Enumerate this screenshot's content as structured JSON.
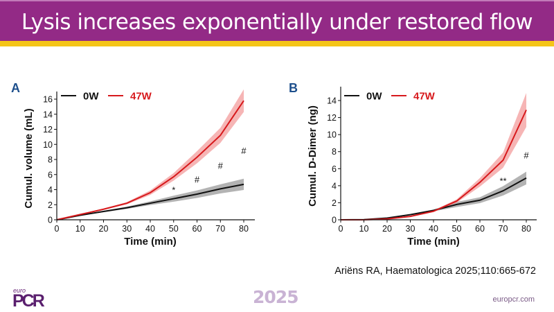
{
  "slide": {
    "title": "Lysis increases exponentially under restored flow",
    "citation": "Ariëns RA, Haematologica 2025;110:665-672",
    "footer": {
      "logo_small": "euro",
      "logo_big": "PCR",
      "year": "2025",
      "website": "europcr.com"
    },
    "colors": {
      "header": "#932a86",
      "accent_bar": "#f5c518",
      "series_0W": "#111111",
      "series_47W": "#d7191c",
      "band_0W": "#9a9a9a",
      "band_47W": "#f4a3a3"
    }
  },
  "chart_data": [
    {
      "panel": "A",
      "type": "line",
      "title": "",
      "xlabel": "Time (min)",
      "ylabel": "Cumul. volume (mL)",
      "x": [
        0,
        10,
        20,
        30,
        40,
        50,
        60,
        70,
        80
      ],
      "xlim": [
        0,
        85
      ],
      "ylim": [
        0,
        17
      ],
      "xticks": [
        0,
        10,
        20,
        30,
        40,
        50,
        60,
        70,
        80
      ],
      "yticks": [
        0,
        2,
        4,
        6,
        8,
        10,
        12,
        14,
        16
      ],
      "legend": {
        "position": "top-left",
        "entries": [
          "0W",
          "47W"
        ]
      },
      "grid": false,
      "series": [
        {
          "name": "0W",
          "values": [
            0,
            0.6,
            1.1,
            1.6,
            2.2,
            2.8,
            3.4,
            4.1,
            4.7
          ],
          "error": [
            0,
            0.05,
            0.1,
            0.15,
            0.25,
            0.4,
            0.5,
            0.6,
            0.75
          ]
        },
        {
          "name": "47W",
          "values": [
            0,
            0.7,
            1.4,
            2.2,
            3.6,
            5.7,
            8.3,
            11.2,
            15.8
          ],
          "error": [
            0,
            0.05,
            0.1,
            0.15,
            0.3,
            0.5,
            0.8,
            1.0,
            1.5
          ]
        }
      ],
      "annotations": [
        {
          "x": 50,
          "y": 4.0,
          "text": "*"
        },
        {
          "x": 60,
          "y": 5.4,
          "text": "#"
        },
        {
          "x": 70,
          "y": 7.2,
          "text": "#"
        },
        {
          "x": 80,
          "y": 9.2,
          "text": "#"
        }
      ]
    },
    {
      "panel": "B",
      "type": "line",
      "title": "",
      "xlabel": "Time (min)",
      "ylabel": "Cumul. D-Dimer  (ng)",
      "x": [
        0,
        10,
        20,
        30,
        40,
        50,
        60,
        70,
        80
      ],
      "xlim": [
        0,
        85
      ],
      "ylim": [
        0,
        15
      ],
      "xticks": [
        0,
        10,
        20,
        30,
        40,
        50,
        60,
        70,
        80
      ],
      "yticks": [
        0,
        2,
        4,
        6,
        8,
        10,
        12,
        14
      ],
      "legend": {
        "position": "top-left",
        "entries": [
          "0W",
          "47W"
        ]
      },
      "grid": false,
      "series": [
        {
          "name": "0W",
          "values": [
            0,
            0.02,
            0.2,
            0.6,
            1.1,
            1.8,
            2.3,
            3.4,
            4.9
          ],
          "error": [
            0,
            0,
            0.05,
            0.08,
            0.1,
            0.3,
            0.35,
            0.55,
            0.75
          ]
        },
        {
          "name": "47W",
          "values": [
            0,
            0.0,
            0.1,
            0.4,
            1.0,
            2.2,
            4.4,
            7.0,
            12.9
          ],
          "error": [
            0,
            0,
            0.05,
            0.05,
            0.1,
            0.2,
            0.5,
            0.9,
            2.0
          ]
        }
      ],
      "annotations": [
        {
          "x": 70,
          "y": 4.6,
          "text": "**"
        },
        {
          "x": 80,
          "y": 7.6,
          "text": "#"
        }
      ]
    }
  ]
}
